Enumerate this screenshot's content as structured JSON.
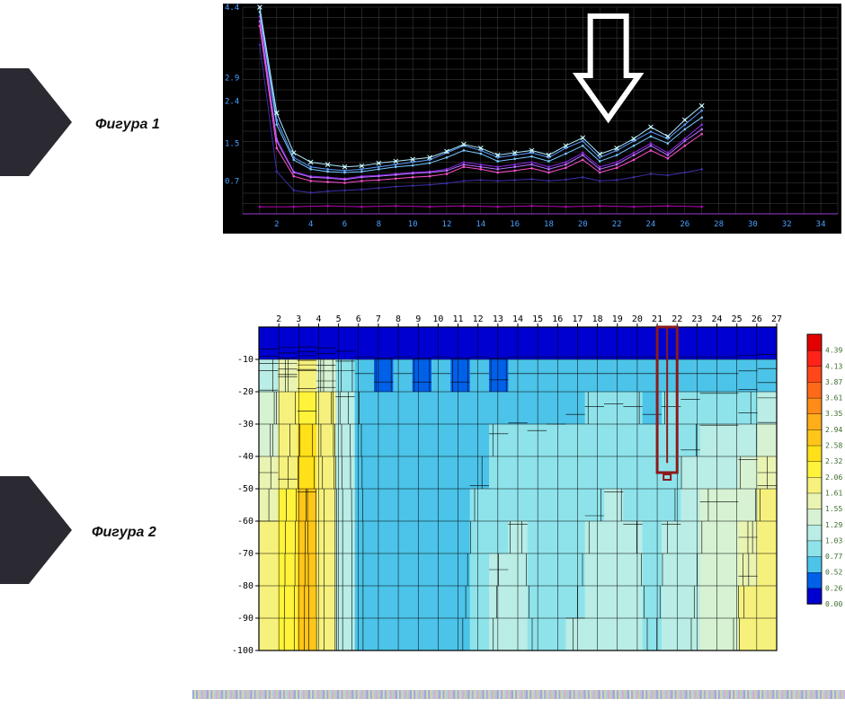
{
  "labels": {
    "fig1": "Фигура 1",
    "fig2": "Фигура 2"
  },
  "pentagon": {
    "color": "#2b2932",
    "top1": 76,
    "top2": 530
  },
  "fig_label_style": {
    "fontsize": 16,
    "color": "#111111"
  },
  "chart1": {
    "type": "line",
    "background": "#000000",
    "grid_color": "#565656",
    "grid_color_major_x": "#9d3bd6",
    "axis_label_color": "#4aa0ff",
    "axis_label_fontsize": 9,
    "x": {
      "min": 0,
      "max": 35,
      "tick_step": 2,
      "label_start": 2
    },
    "y": {
      "min": 0,
      "max": 4.4,
      "ticks": [
        0.7,
        1.5,
        2.4,
        2.9,
        4.4
      ]
    },
    "series": [
      {
        "color": "#8a2be2",
        "width": 1,
        "points": [
          [
            1,
            4.2
          ],
          [
            2,
            1.6
          ],
          [
            3,
            0.9
          ],
          [
            4,
            0.8
          ],
          [
            5,
            0.78
          ],
          [
            6,
            0.75
          ],
          [
            7,
            0.8
          ],
          [
            8,
            0.82
          ],
          [
            9,
            0.85
          ],
          [
            10,
            0.88
          ],
          [
            11,
            0.9
          ],
          [
            12,
            0.95
          ],
          [
            13,
            1.1
          ],
          [
            14,
            1.05
          ],
          [
            15,
            1.0
          ],
          [
            16,
            1.05
          ],
          [
            17,
            1.1
          ],
          [
            18,
            1.0
          ],
          [
            19,
            1.1
          ],
          [
            20,
            1.3
          ],
          [
            21,
            1.0
          ],
          [
            22,
            1.1
          ],
          [
            23,
            1.3
          ],
          [
            24,
            1.5
          ],
          [
            25,
            1.3
          ],
          [
            26,
            1.6
          ],
          [
            27,
            1.9
          ]
        ]
      },
      {
        "color": "#5e9bff",
        "width": 1,
        "points": [
          [
            1,
            4.4
          ],
          [
            2,
            2.0
          ],
          [
            3,
            1.2
          ],
          [
            4,
            1.0
          ],
          [
            5,
            0.95
          ],
          [
            6,
            0.92
          ],
          [
            7,
            0.95
          ],
          [
            8,
            1.0
          ],
          [
            9,
            1.05
          ],
          [
            10,
            1.1
          ],
          [
            11,
            1.15
          ],
          [
            12,
            1.3
          ],
          [
            13,
            1.45
          ],
          [
            14,
            1.35
          ],
          [
            15,
            1.2
          ],
          [
            16,
            1.25
          ],
          [
            17,
            1.3
          ],
          [
            18,
            1.2
          ],
          [
            19,
            1.4
          ],
          [
            20,
            1.55
          ],
          [
            21,
            1.2
          ],
          [
            22,
            1.35
          ],
          [
            23,
            1.55
          ],
          [
            24,
            1.75
          ],
          [
            25,
            1.6
          ],
          [
            26,
            1.9
          ],
          [
            27,
            2.2
          ]
        ]
      },
      {
        "color": "#75c8ff",
        "width": 1,
        "points": [
          [
            1,
            4.3
          ],
          [
            2,
            1.9
          ],
          [
            3,
            1.15
          ],
          [
            4,
            0.95
          ],
          [
            5,
            0.9
          ],
          [
            6,
            0.88
          ],
          [
            7,
            0.9
          ],
          [
            8,
            0.95
          ],
          [
            9,
            1.0
          ],
          [
            10,
            1.03
          ],
          [
            11,
            1.08
          ],
          [
            12,
            1.2
          ],
          [
            13,
            1.35
          ],
          [
            14,
            1.28
          ],
          [
            15,
            1.12
          ],
          [
            16,
            1.17
          ],
          [
            17,
            1.22
          ],
          [
            18,
            1.12
          ],
          [
            19,
            1.28
          ],
          [
            20,
            1.45
          ],
          [
            21,
            1.12
          ],
          [
            22,
            1.25
          ],
          [
            23,
            1.45
          ],
          [
            24,
            1.65
          ],
          [
            25,
            1.5
          ],
          [
            26,
            1.8
          ],
          [
            27,
            2.05
          ]
        ]
      },
      {
        "color": "#b96fff",
        "width": 1,
        "points": [
          [
            1,
            4.1
          ],
          [
            2,
            1.55
          ],
          [
            3,
            0.88
          ],
          [
            4,
            0.78
          ],
          [
            5,
            0.76
          ],
          [
            6,
            0.73
          ],
          [
            7,
            0.78
          ],
          [
            8,
            0.8
          ],
          [
            9,
            0.83
          ],
          [
            10,
            0.86
          ],
          [
            11,
            0.88
          ],
          [
            12,
            0.92
          ],
          [
            13,
            1.05
          ],
          [
            14,
            1.0
          ],
          [
            15,
            0.95
          ],
          [
            16,
            1.0
          ],
          [
            17,
            1.05
          ],
          [
            18,
            0.95
          ],
          [
            19,
            1.05
          ],
          [
            20,
            1.25
          ],
          [
            21,
            0.95
          ],
          [
            22,
            1.05
          ],
          [
            23,
            1.25
          ],
          [
            24,
            1.45
          ],
          [
            25,
            1.25
          ],
          [
            26,
            1.55
          ],
          [
            27,
            1.8
          ]
        ]
      },
      {
        "color": "#aee8ff",
        "width": 1,
        "points": [
          [
            1,
            4.4
          ],
          [
            2,
            2.15
          ],
          [
            3,
            1.3
          ],
          [
            4,
            1.1
          ],
          [
            5,
            1.05
          ],
          [
            6,
            1.0
          ],
          [
            7,
            1.02
          ],
          [
            8,
            1.08
          ],
          [
            9,
            1.12
          ],
          [
            10,
            1.16
          ],
          [
            11,
            1.2
          ],
          [
            12,
            1.33
          ],
          [
            13,
            1.48
          ],
          [
            14,
            1.4
          ],
          [
            15,
            1.25
          ],
          [
            16,
            1.3
          ],
          [
            17,
            1.35
          ],
          [
            18,
            1.25
          ],
          [
            19,
            1.45
          ],
          [
            20,
            1.62
          ],
          [
            21,
            1.27
          ],
          [
            22,
            1.4
          ],
          [
            23,
            1.6
          ],
          [
            24,
            1.85
          ],
          [
            25,
            1.65
          ],
          [
            26,
            2.0
          ],
          [
            27,
            2.3
          ]
        ]
      },
      {
        "color": "#ff4fd0",
        "width": 1,
        "points": [
          [
            1,
            4.0
          ],
          [
            2,
            1.4
          ],
          [
            3,
            0.8
          ],
          [
            4,
            0.7
          ],
          [
            5,
            0.68
          ],
          [
            6,
            0.66
          ],
          [
            7,
            0.7
          ],
          [
            8,
            0.72
          ],
          [
            9,
            0.75
          ],
          [
            10,
            0.78
          ],
          [
            11,
            0.8
          ],
          [
            12,
            0.85
          ],
          [
            13,
            1.0
          ],
          [
            14,
            0.95
          ],
          [
            15,
            0.88
          ],
          [
            16,
            0.92
          ],
          [
            17,
            0.97
          ],
          [
            18,
            0.88
          ],
          [
            19,
            0.98
          ],
          [
            20,
            1.15
          ],
          [
            21,
            0.88
          ],
          [
            22,
            0.98
          ],
          [
            23,
            1.15
          ],
          [
            24,
            1.35
          ],
          [
            25,
            1.18
          ],
          [
            26,
            1.45
          ],
          [
            27,
            1.7
          ]
        ]
      },
      {
        "color": "#3b2fa8",
        "width": 1,
        "points": [
          [
            1,
            3.6
          ],
          [
            2,
            0.9
          ],
          [
            3,
            0.5
          ],
          [
            4,
            0.45
          ],
          [
            5,
            0.48
          ],
          [
            6,
            0.5
          ],
          [
            7,
            0.52
          ],
          [
            8,
            0.55
          ],
          [
            9,
            0.58
          ],
          [
            10,
            0.6
          ],
          [
            11,
            0.62
          ],
          [
            12,
            0.65
          ],
          [
            13,
            0.7
          ],
          [
            14,
            0.72
          ],
          [
            15,
            0.7
          ],
          [
            16,
            0.72
          ],
          [
            17,
            0.74
          ],
          [
            18,
            0.7
          ],
          [
            19,
            0.73
          ],
          [
            20,
            0.78
          ],
          [
            21,
            0.7
          ],
          [
            22,
            0.72
          ],
          [
            23,
            0.78
          ],
          [
            24,
            0.85
          ],
          [
            25,
            0.82
          ],
          [
            26,
            0.88
          ],
          [
            27,
            0.95
          ]
        ]
      },
      {
        "color": "#b700b7",
        "width": 1,
        "points": [
          [
            1,
            0.15
          ],
          [
            3,
            0.15
          ],
          [
            5,
            0.17
          ],
          [
            7,
            0.15
          ],
          [
            9,
            0.17
          ],
          [
            11,
            0.15
          ],
          [
            13,
            0.17
          ],
          [
            15,
            0.15
          ],
          [
            17,
            0.17
          ],
          [
            19,
            0.15
          ],
          [
            21,
            0.17
          ],
          [
            23,
            0.15
          ],
          [
            25,
            0.17
          ],
          [
            27,
            0.15
          ]
        ]
      }
    ],
    "marker_color": "#cfffff",
    "arrow": {
      "x": 21.5,
      "stroke": "#ffffff",
      "width": 6
    }
  },
  "chart2": {
    "type": "heatmap",
    "background": "#ffffff",
    "axis_label_color": "#000000",
    "axis_label_fontsize": 10,
    "grid_color": "#000000",
    "x": {
      "min": 1,
      "max": 27,
      "tick_step": 1,
      "label_start": 2
    },
    "y": {
      "min": -100,
      "max": 0,
      "tick_step": 10
    },
    "cols": 27,
    "rows": 10,
    "data": [
      [
        0.05,
        0.05,
        0.05,
        0.05,
        0.05,
        0.05,
        0.05,
        0.05,
        0.05,
        0.05,
        0.05,
        0.05,
        0.05,
        0.05,
        0.05,
        0.05,
        0.05,
        0.05,
        0.05,
        0.05,
        0.05,
        0.05,
        0.05,
        0.05,
        0.05,
        0.05,
        0.05
      ],
      [
        1.2,
        1.6,
        1.9,
        1.5,
        0.9,
        0.55,
        0.5,
        0.55,
        0.5,
        0.55,
        0.5,
        0.55,
        0.5,
        0.55,
        0.55,
        0.55,
        0.55,
        0.55,
        0.55,
        0.55,
        0.55,
        0.55,
        0.55,
        0.55,
        0.55,
        0.6,
        0.65
      ],
      [
        1.4,
        1.9,
        2.3,
        1.8,
        1.1,
        0.65,
        0.6,
        0.6,
        0.6,
        0.6,
        0.6,
        0.62,
        0.65,
        0.7,
        0.7,
        0.72,
        0.75,
        0.78,
        0.8,
        0.78,
        0.75,
        0.78,
        0.85,
        0.95,
        0.95,
        1.0,
        1.2
      ],
      [
        1.5,
        2.0,
        2.5,
        1.9,
        1.15,
        0.7,
        0.62,
        0.6,
        0.62,
        0.62,
        0.64,
        0.7,
        0.8,
        0.85,
        0.8,
        0.82,
        0.85,
        0.9,
        0.92,
        0.9,
        0.85,
        0.9,
        1.0,
        1.1,
        1.1,
        1.2,
        1.4
      ],
      [
        1.55,
        2.05,
        2.55,
        1.95,
        1.15,
        0.72,
        0.63,
        0.6,
        0.62,
        0.63,
        0.66,
        0.75,
        0.9,
        0.95,
        0.88,
        0.87,
        0.9,
        0.98,
        1.0,
        0.95,
        0.88,
        0.95,
        1.1,
        1.2,
        1.2,
        1.35,
        1.55
      ],
      [
        1.6,
        2.1,
        2.6,
        2.0,
        1.18,
        0.73,
        0.64,
        0.6,
        0.62,
        0.64,
        0.68,
        0.8,
        0.95,
        1.0,
        0.92,
        0.9,
        0.95,
        1.02,
        1.05,
        1.0,
        0.92,
        1.0,
        1.15,
        1.3,
        1.3,
        1.45,
        1.7
      ],
      [
        1.62,
        2.12,
        2.62,
        2.0,
        1.18,
        0.74,
        0.64,
        0.6,
        0.62,
        0.65,
        0.7,
        0.83,
        1.0,
        1.05,
        0.95,
        0.92,
        0.98,
        1.05,
        1.1,
        1.05,
        0.95,
        1.05,
        1.2,
        1.35,
        1.35,
        1.55,
        1.8
      ],
      [
        1.63,
        2.13,
        2.63,
        2.0,
        1.18,
        0.74,
        0.64,
        0.6,
        0.62,
        0.66,
        0.72,
        0.85,
        1.03,
        1.08,
        0.97,
        0.93,
        1.0,
        1.08,
        1.13,
        1.08,
        0.97,
        1.08,
        1.23,
        1.4,
        1.4,
        1.6,
        1.85
      ],
      [
        1.64,
        2.14,
        2.64,
        2.0,
        1.18,
        0.74,
        0.64,
        0.6,
        0.62,
        0.67,
        0.73,
        0.87,
        1.05,
        1.1,
        0.98,
        0.94,
        1.02,
        1.1,
        1.15,
        1.1,
        0.98,
        1.1,
        1.25,
        1.45,
        1.45,
        1.65,
        1.9
      ],
      [
        1.65,
        2.15,
        2.65,
        2.0,
        1.18,
        0.74,
        0.64,
        0.6,
        0.62,
        0.68,
        0.75,
        0.9,
        1.08,
        1.12,
        1.0,
        0.95,
        1.04,
        1.12,
        1.18,
        1.12,
        1.0,
        1.12,
        1.28,
        1.5,
        1.5,
        1.7,
        1.95
      ]
    ],
    "contour_color": "#000000",
    "contour_levels": [
      0.26,
      0.52,
      0.77,
      1.03,
      1.29,
      1.55,
      1.61,
      2.06,
      2.32,
      2.58
    ],
    "highlight_box": {
      "xmin": 21,
      "xmax": 22,
      "ymin": -45,
      "ymax": 0,
      "stroke": "#8b1a1a",
      "width": 3,
      "inner_tick_y": -42
    },
    "colorbar": {
      "levels": [
        {
          "v": 0.0,
          "c": "#0000d0"
        },
        {
          "v": 0.26,
          "c": "#0060e8"
        },
        {
          "v": 0.52,
          "c": "#4cc3e8"
        },
        {
          "v": 0.77,
          "c": "#8ee3eb"
        },
        {
          "v": 1.03,
          "c": "#b9ede5"
        },
        {
          "v": 1.29,
          "c": "#d6f2d2"
        },
        {
          "v": 1.55,
          "c": "#e9f4b2"
        },
        {
          "v": 1.61,
          "c": "#f6f17c"
        },
        {
          "v": 2.06,
          "c": "#fff33b"
        },
        {
          "v": 2.32,
          "c": "#ffe019"
        },
        {
          "v": 2.58,
          "c": "#ffc619"
        },
        {
          "v": 2.94,
          "c": "#ffad19"
        },
        {
          "v": 3.35,
          "c": "#ff8c19"
        },
        {
          "v": 3.61,
          "c": "#ff6a19"
        },
        {
          "v": 3.87,
          "c": "#ff4719"
        },
        {
          "v": 4.13,
          "c": "#ff2319"
        },
        {
          "v": 4.39,
          "c": "#e30000"
        }
      ],
      "label_fontsize": 8,
      "label_color": "#3a6c2a"
    }
  },
  "footer_strip": {
    "colors": [
      "#8fa2d6",
      "#c6b2e0",
      "#b0d6a0",
      "#e0a0d0",
      "#a0d0e0",
      "#d6d0a0",
      "#a0a0e0",
      "#d0e0b0"
    ]
  }
}
